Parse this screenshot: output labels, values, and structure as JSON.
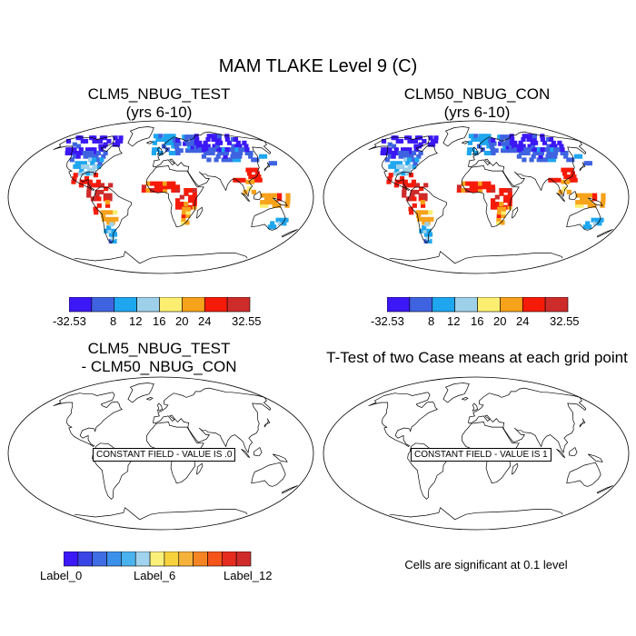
{
  "main_title": "MAM TLAKE Level 9 (C)",
  "panels": {
    "tl": {
      "title1": "CLM5_NBUG_TEST",
      "title2": "(yrs 6-10)"
    },
    "tr": {
      "title1": "CLM50_NBUG_CON",
      "title2": "(yrs 6-10)"
    },
    "bl": {
      "title1": "CLM5_NBUG_TEST",
      "title2": "- CLM50_NBUG_CON",
      "notice": "CONSTANT FIELD - VALUE IS .0"
    },
    "br": {
      "title1": "T-Test of two Case means at each grid point",
      "notice": "CONSTANT FIELD - VALUE IS 1"
    }
  },
  "colorbar_top": {
    "colors": [
      "#3b18f5",
      "#3f63e0",
      "#1ea6ef",
      "#9ed0ea",
      "#fbee71",
      "#f7a21b",
      "#f61b09",
      "#ce2b2b"
    ],
    "labels": [
      "-32.53",
      "8",
      "12",
      "16",
      "20",
      "24",
      "32.55"
    ]
  },
  "colorbar_bottom": {
    "colors": [
      "#3b18f5",
      "#3a45e6",
      "#3f6de3",
      "#3b90ea",
      "#4ab3ef",
      "#a2d3ee",
      "#fbf07a",
      "#f8d23c",
      "#f6b33b",
      "#f48424",
      "#f5541a",
      "#e62b1f",
      "#cf2b2b"
    ],
    "labels": [
      "Label_0",
      "Label_6",
      "Label_12"
    ]
  },
  "significance_note": "Cells are significant at 0.1 level"
}
